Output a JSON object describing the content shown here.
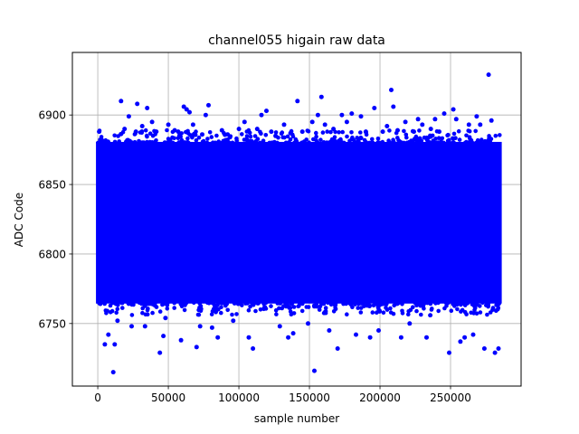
{
  "chart_data": {
    "type": "scatter",
    "title": "channel055 higain raw data",
    "xlabel": "sample number",
    "ylabel": "ADC Code",
    "xlim": [
      -18000,
      300000
    ],
    "ylim": [
      6705,
      6945
    ],
    "xticks": [
      0,
      50000,
      100000,
      150000,
      200000,
      250000
    ],
    "yticks": [
      6750,
      6800,
      6850,
      6900
    ],
    "grid": true,
    "marker_color": "#0000ff",
    "band": {
      "x_min": 0,
      "x_max": 285000,
      "y_min": 6765,
      "y_max": 6880
    },
    "points": [
      [
        1000,
        6888
      ],
      [
        3500,
        6776
      ],
      [
        5000,
        6735
      ],
      [
        7500,
        6742
      ],
      [
        11000,
        6715
      ],
      [
        12000,
        6735
      ],
      [
        14000,
        6752
      ],
      [
        16500,
        6910
      ],
      [
        19000,
        6890
      ],
      [
        22000,
        6899
      ],
      [
        24000,
        6748
      ],
      [
        27000,
        6888
      ],
      [
        28000,
        6908
      ],
      [
        31500,
        6892
      ],
      [
        33500,
        6748
      ],
      [
        35000,
        6905
      ],
      [
        38500,
        6895
      ],
      [
        41500,
        6888
      ],
      [
        44000,
        6729
      ],
      [
        46500,
        6741
      ],
      [
        48000,
        6754
      ],
      [
        50000,
        6893
      ],
      [
        54500,
        6889
      ],
      [
        57000,
        6888
      ],
      [
        59000,
        6738
      ],
      [
        61000,
        6906
      ],
      [
        63000,
        6904
      ],
      [
        65000,
        6902
      ],
      [
        67500,
        6893
      ],
      [
        70000,
        6733
      ],
      [
        72500,
        6748
      ],
      [
        74000,
        6886
      ],
      [
        76500,
        6900
      ],
      [
        78500,
        6907
      ],
      [
        81000,
        6747
      ],
      [
        85000,
        6740
      ],
      [
        88000,
        6889
      ],
      [
        92000,
        6886
      ],
      [
        96000,
        6752
      ],
      [
        100000,
        6890
      ],
      [
        104000,
        6895
      ],
      [
        107000,
        6740
      ],
      [
        110000,
        6732
      ],
      [
        113000,
        6890
      ],
      [
        116000,
        6900
      ],
      [
        119500,
        6903
      ],
      [
        123000,
        6888
      ],
      [
        126000,
        6885
      ],
      [
        129000,
        6748
      ],
      [
        132000,
        6893
      ],
      [
        135000,
        6740
      ],
      [
        138500,
        6743
      ],
      [
        141500,
        6910
      ],
      [
        145000,
        6888
      ],
      [
        149000,
        6750
      ],
      [
        152000,
        6895
      ],
      [
        153500,
        6716
      ],
      [
        156000,
        6900
      ],
      [
        158500,
        6913
      ],
      [
        161000,
        6893
      ],
      [
        164000,
        6745
      ],
      [
        167000,
        6890
      ],
      [
        170000,
        6732
      ],
      [
        173000,
        6900
      ],
      [
        176500,
        6895
      ],
      [
        180000,
        6901
      ],
      [
        183000,
        6742
      ],
      [
        186500,
        6899
      ],
      [
        190000,
        6888
      ],
      [
        193000,
        6740
      ],
      [
        196000,
        6905
      ],
      [
        199000,
        6745
      ],
      [
        202000,
        6888
      ],
      [
        205000,
        6892
      ],
      [
        208000,
        6918
      ],
      [
        209500,
        6906
      ],
      [
        212500,
        6889
      ],
      [
        215000,
        6740
      ],
      [
        218000,
        6895
      ],
      [
        221000,
        6750
      ],
      [
        224000,
        6888
      ],
      [
        227000,
        6897
      ],
      [
        230000,
        6893
      ],
      [
        233000,
        6740
      ],
      [
        236000,
        6890
      ],
      [
        239000,
        6897
      ],
      [
        242000,
        6888
      ],
      [
        245500,
        6901
      ],
      [
        249000,
        6729
      ],
      [
        252000,
        6904
      ],
      [
        254000,
        6897
      ],
      [
        257000,
        6737
      ],
      [
        260000,
        6740
      ],
      [
        263000,
        6893
      ],
      [
        266000,
        6742
      ],
      [
        268500,
        6899
      ],
      [
        271000,
        6893
      ],
      [
        274000,
        6732
      ],
      [
        277000,
        6929
      ],
      [
        279000,
        6896
      ],
      [
        281500,
        6729
      ],
      [
        284000,
        6732
      ]
    ]
  }
}
